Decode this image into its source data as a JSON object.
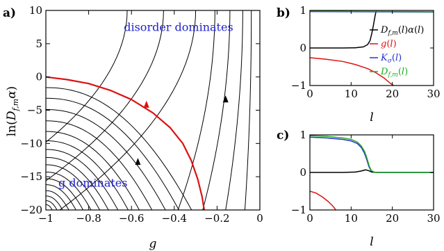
{
  "chart_data": [
    {
      "panel": "a)",
      "type": "line",
      "xlabel": "g",
      "ylabel": "ln(D_{f,m}α)",
      "xlim": [
        -1,
        0
      ],
      "ylim": [
        -20,
        10
      ],
      "xticks": [
        -1,
        -0.8,
        -0.6,
        -0.4,
        -0.2,
        0
      ],
      "xtick_labels": [
        "−1",
        "−0.8",
        "−0.6",
        "−0.4",
        "−0.2",
        "0"
      ],
      "yticks": [
        -20,
        -15,
        -10,
        -5,
        0,
        5,
        10
      ],
      "ytick_labels": [
        "−20",
        "−15",
        "−10",
        "−5",
        "0",
        "5",
        "10"
      ],
      "annotations": [
        {
          "text": "disorder dominates",
          "color": "#2222cc",
          "x": -0.38,
          "y": 6.9
        },
        {
          "text": "g dominates",
          "color": "#2222cc",
          "x": -0.78,
          "y": -16.5
        }
      ],
      "flow_lines": {
        "color": "#000000",
        "upper_family_g_at_10": [
          -0.04,
          -0.08,
          -0.14,
          -0.21,
          -0.3,
          -0.45,
          -0.62
        ],
        "lower_family_y_at_g_minus1": [
          -1.6,
          -3.2,
          -4.9,
          -6.6,
          -8.2,
          -9.6,
          -10.9,
          -12.1,
          -13.2,
          -14.3,
          -15.3,
          -16.2,
          -17.1,
          -17.9,
          -18.6,
          -19.2
        ]
      },
      "separatrix": {
        "color": "#dd1111",
        "x": [
          -1,
          -0.9,
          -0.8,
          -0.7,
          -0.6,
          -0.5,
          -0.42,
          -0.36,
          -0.32,
          -0.29,
          -0.27,
          -0.26
        ],
        "y": [
          0,
          -0.4,
          -1.0,
          -2.0,
          -3.4,
          -5.4,
          -7.6,
          -10.0,
          -12.6,
          -15.4,
          -18.0,
          -20.0
        ]
      },
      "arrows": [
        {
          "x": -0.53,
          "y": -4.2,
          "color": "#dd1111"
        },
        {
          "x": -0.16,
          "y": -3.4,
          "color": "#000000"
        },
        {
          "x": -0.57,
          "y": -12.8,
          "color": "#000000"
        }
      ]
    },
    {
      "panel": "b)",
      "type": "line",
      "xlabel": "l",
      "ylabel": "",
      "xlim": [
        0,
        30
      ],
      "ylim": [
        -1,
        1
      ],
      "xticks": [
        0,
        10,
        20,
        30
      ],
      "xtick_labels": [
        "0",
        "10",
        "20",
        "30"
      ],
      "yticks": [
        -1,
        0,
        1
      ],
      "ytick_labels": [
        "−1",
        "0",
        "1"
      ],
      "legend_position": "right",
      "series": [
        {
          "name": "D_{f,m}(l)α(l)",
          "color": "#000000",
          "x": [
            0,
            8,
            11,
            13,
            14,
            14.6,
            15.0,
            15.4,
            15.8,
            16.1
          ],
          "y": [
            0,
            0,
            0.005,
            0.03,
            0.09,
            0.2,
            0.38,
            0.6,
            0.85,
            1.0
          ]
        },
        {
          "name": "g(l)",
          "color": "#dd1111",
          "x": [
            0,
            4,
            8,
            11,
            14,
            16,
            18,
            19.5,
            20.3
          ],
          "y": [
            -0.26,
            -0.3,
            -0.36,
            -0.44,
            -0.55,
            -0.66,
            -0.8,
            -0.94,
            -1.0
          ]
        },
        {
          "name": "K_σ(l)",
          "color": "#2233cc",
          "x": [
            0,
            10,
            20,
            30
          ],
          "y": [
            0.97,
            0.965,
            0.96,
            0.955
          ]
        },
        {
          "name": "D_{f,m}(l)",
          "color": "#22aa22",
          "x": [
            0,
            10,
            20,
            30
          ],
          "y": [
            0.985,
            0.975,
            0.97,
            0.965
          ]
        }
      ]
    },
    {
      "panel": "c)",
      "type": "line",
      "xlabel": "l",
      "ylabel": "",
      "xlim": [
        0,
        30
      ],
      "ylim": [
        -1,
        1
      ],
      "xticks": [
        0,
        10,
        20,
        30
      ],
      "xtick_labels": [
        "0",
        "10",
        "20",
        "30"
      ],
      "yticks": [
        -1,
        0,
        1
      ],
      "ytick_labels": [
        "−1",
        "0",
        "1"
      ],
      "series": [
        {
          "name": "D_{f,m}(l)α(l)",
          "color": "#000000",
          "x": [
            0,
            8,
            11,
            12.5,
            13.5,
            14.2,
            15,
            16,
            30
          ],
          "y": [
            0,
            0,
            0.01,
            0.04,
            0.07,
            0.05,
            0.01,
            0,
            0
          ]
        },
        {
          "name": "g(l)",
          "color": "#dd1111",
          "x": [
            0,
            1.5,
            3,
            4.5,
            5.6,
            6.3
          ],
          "y": [
            -0.5,
            -0.55,
            -0.65,
            -0.78,
            -0.9,
            -1.0
          ]
        },
        {
          "name": "K_σ(l)",
          "color": "#2233cc",
          "x": [
            0,
            4,
            8,
            10,
            11.5,
            12.5,
            13.2,
            13.8,
            14.3,
            14.8,
            15.5,
            16.5,
            30
          ],
          "y": [
            0.94,
            0.92,
            0.88,
            0.84,
            0.77,
            0.66,
            0.52,
            0.34,
            0.16,
            0.05,
            0.01,
            0,
            0
          ]
        },
        {
          "name": "D_{f,m}(l)",
          "color": "#22aa22",
          "x": [
            0,
            4,
            8,
            10,
            11.5,
            12.5,
            13.3,
            13.9,
            14.4,
            14.9,
            15.6,
            16.5,
            30
          ],
          "y": [
            0.98,
            0.96,
            0.92,
            0.88,
            0.81,
            0.7,
            0.55,
            0.36,
            0.17,
            0.05,
            0.01,
            0,
            0
          ]
        }
      ]
    }
  ]
}
